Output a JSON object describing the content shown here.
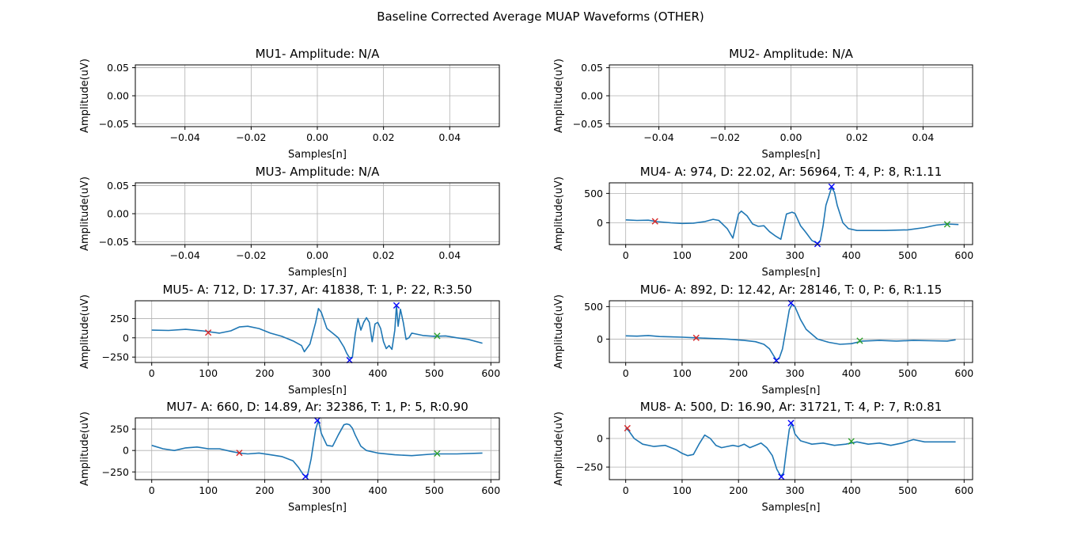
{
  "figure_title": "Baseline Corrected Average MUAP Waveforms (OTHER)",
  "chart_data": [
    {
      "type": "line",
      "title": "MU1- Amplitude: N/A",
      "xlabel": "Samples[n]",
      "ylabel": "Amplitude(uV)",
      "xlim": [
        -0.055,
        0.055
      ],
      "ylim": [
        -0.055,
        0.055
      ],
      "xticks": [
        -0.04,
        -0.02,
        0.0,
        0.02,
        0.04
      ],
      "xtick_labels": [
        "−0.04",
        "−0.02",
        "0.00",
        "0.02",
        "0.04"
      ],
      "yticks": [
        -0.05,
        0.0,
        0.05
      ],
      "ytick_labels": [
        "−0.05",
        "0.00",
        "0.05"
      ],
      "grid": true,
      "series": [],
      "markers": []
    },
    {
      "type": "line",
      "title": "MU2- Amplitude: N/A",
      "xlabel": "Samples[n]",
      "ylabel": "Amplitude(uV)",
      "xlim": [
        -0.055,
        0.055
      ],
      "ylim": [
        -0.055,
        0.055
      ],
      "xticks": [
        -0.04,
        -0.02,
        0.0,
        0.02,
        0.04
      ],
      "xtick_labels": [
        "−0.04",
        "−0.02",
        "0.00",
        "0.02",
        "0.04"
      ],
      "yticks": [
        -0.05,
        0.0,
        0.05
      ],
      "ytick_labels": [
        "−0.05",
        "0.00",
        "0.05"
      ],
      "grid": true,
      "series": [],
      "markers": []
    },
    {
      "type": "line",
      "title": "MU3- Amplitude: N/A",
      "xlabel": "Samples[n]",
      "ylabel": "Amplitude(uV)",
      "xlim": [
        -0.055,
        0.055
      ],
      "ylim": [
        -0.055,
        0.055
      ],
      "xticks": [
        -0.04,
        -0.02,
        0.0,
        0.02,
        0.04
      ],
      "xtick_labels": [
        "−0.04",
        "−0.02",
        "0.00",
        "0.02",
        "0.04"
      ],
      "yticks": [
        -0.05,
        0.0,
        0.05
      ],
      "ytick_labels": [
        "−0.05",
        "0.00",
        "0.05"
      ],
      "grid": true,
      "series": [],
      "markers": []
    },
    {
      "type": "line",
      "title": "MU4- A: 974, D: 22.02, Ar: 56964, T: 4, P: 8, R:1.11",
      "xlabel": "Samples[n]",
      "ylabel": "Amplitude(uV)",
      "xlim": [
        -29,
        615
      ],
      "ylim": [
        -370,
        680
      ],
      "xticks": [
        0,
        100,
        200,
        300,
        400,
        500,
        600
      ],
      "xtick_labels": [
        "0",
        "100",
        "200",
        "300",
        "400",
        "500",
        "600"
      ],
      "yticks": [
        0,
        500
      ],
      "ytick_labels": [
        "0",
        "500"
      ],
      "grid": true,
      "series": [
        {
          "color": "#1f77b4",
          "x": [
            0,
            20,
            40,
            55,
            80,
            100,
            120,
            140,
            155,
            165,
            180,
            190,
            200,
            205,
            215,
            225,
            235,
            245,
            255,
            265,
            275,
            285,
            295,
            300,
            310,
            320,
            330,
            340,
            345,
            350,
            355,
            360,
            365,
            370,
            375,
            385,
            395,
            410,
            430,
            460,
            500,
            530,
            550,
            570,
            590
          ],
          "y": [
            50,
            40,
            45,
            20,
            0,
            -10,
            -5,
            20,
            60,
            40,
            -100,
            -260,
            150,
            200,
            120,
            -20,
            -60,
            -50,
            -150,
            -220,
            -280,
            150,
            180,
            160,
            -50,
            -170,
            -300,
            -350,
            -300,
            -50,
            300,
            450,
            600,
            520,
            300,
            0,
            -100,
            -130,
            -130,
            -130,
            -120,
            -80,
            -40,
            -20,
            -30
          ]
        }
      ],
      "markers": [
        {
          "label": "onset",
          "color": "#d62728",
          "x": 52,
          "y": 25
        },
        {
          "label": "min",
          "color": "#0000ff",
          "x": 340,
          "y": -360
        },
        {
          "label": "max",
          "color": "#0000ff",
          "x": 365,
          "y": 614
        },
        {
          "label": "end",
          "color": "#2ca02c",
          "x": 570,
          "y": -25
        }
      ]
    },
    {
      "type": "line",
      "title": "MU5- A: 712, D: 17.37, Ar: 41838, T: 1, P: 22, R:3.50",
      "xlabel": "Samples[n]",
      "ylabel": "Amplitude(uV)",
      "xlim": [
        -29,
        615
      ],
      "ylim": [
        -320,
        480
      ],
      "xticks": [
        0,
        100,
        200,
        300,
        400,
        500,
        600
      ],
      "xtick_labels": [
        "0",
        "100",
        "200",
        "300",
        "400",
        "500",
        "600"
      ],
      "yticks": [
        -250,
        0,
        250
      ],
      "ytick_labels": [
        "−250",
        "0",
        "250"
      ],
      "grid": true,
      "series": [
        {
          "color": "#1f77b4",
          "x": [
            0,
            30,
            60,
            90,
            100,
            120,
            140,
            155,
            170,
            190,
            210,
            230,
            250,
            265,
            270,
            280,
            290,
            295,
            300,
            310,
            320,
            330,
            340,
            345,
            350,
            355,
            360,
            365,
            370,
            375,
            380,
            385,
            390,
            395,
            400,
            405,
            410,
            415,
            420,
            425,
            430,
            433,
            436,
            440,
            445,
            450,
            455,
            460,
            480,
            500,
            520,
            540,
            560,
            585
          ],
          "y": [
            100,
            95,
            110,
            90,
            80,
            60,
            90,
            140,
            150,
            120,
            60,
            20,
            -40,
            -100,
            -180,
            -80,
            200,
            380,
            330,
            120,
            60,
            0,
            -120,
            -200,
            -260,
            -250,
            50,
            250,
            100,
            200,
            260,
            200,
            -50,
            180,
            200,
            120,
            -50,
            -140,
            -100,
            -150,
            100,
            420,
            150,
            370,
            200,
            -20,
            0,
            60,
            30,
            20,
            25,
            0,
            -20,
            -70
          ]
        }
      ],
      "markers": [
        {
          "label": "onset",
          "color": "#d62728",
          "x": 100,
          "y": 68
        },
        {
          "label": "min",
          "color": "#0000ff",
          "x": 350,
          "y": -290
        },
        {
          "label": "max",
          "color": "#0000ff",
          "x": 433,
          "y": 420
        },
        {
          "label": "end",
          "color": "#2ca02c",
          "x": 505,
          "y": 25
        }
      ]
    },
    {
      "type": "line",
      "title": "MU6- A: 892, D: 12.42, Ar: 28146, T: 0, P: 6, R:1.15",
      "xlabel": "Samples[n]",
      "ylabel": "Amplitude(uV)",
      "xlim": [
        -29,
        615
      ],
      "ylim": [
        -360,
        590
      ],
      "xticks": [
        0,
        100,
        200,
        300,
        400,
        500,
        600
      ],
      "xtick_labels": [
        "0",
        "100",
        "200",
        "300",
        "400",
        "500",
        "600"
      ],
      "yticks": [
        0,
        500
      ],
      "ytick_labels": [
        "0",
        "500"
      ],
      "grid": true,
      "series": [
        {
          "color": "#1f77b4",
          "x": [
            0,
            20,
            40,
            60,
            80,
            100,
            125,
            150,
            180,
            210,
            230,
            245,
            255,
            262,
            267,
            272,
            278,
            285,
            290,
            295,
            300,
            310,
            320,
            340,
            360,
            380,
            400,
            420,
            450,
            480,
            510,
            540,
            570,
            585
          ],
          "y": [
            50,
            45,
            55,
            40,
            35,
            30,
            20,
            10,
            0,
            -20,
            -40,
            -80,
            -150,
            -250,
            -320,
            -300,
            -150,
            200,
            450,
            540,
            500,
            300,
            150,
            0,
            -50,
            -80,
            -70,
            -30,
            -20,
            -30,
            -20,
            -25,
            -30,
            -10
          ]
        }
      ],
      "markers": [
        {
          "label": "onset",
          "color": "#d62728",
          "x": 125,
          "y": 20
        },
        {
          "label": "min",
          "color": "#0000ff",
          "x": 267,
          "y": -330
        },
        {
          "label": "max",
          "color": "#0000ff",
          "x": 293,
          "y": 555
        },
        {
          "label": "end",
          "color": "#2ca02c",
          "x": 415,
          "y": -25
        }
      ]
    },
    {
      "type": "line",
      "title": "MU7- A: 660, D: 14.89, Ar: 32386, T: 1, P: 5, R:0.90",
      "xlabel": "Samples[n]",
      "ylabel": "Amplitude(uV)",
      "xlim": [
        -29,
        615
      ],
      "ylim": [
        -340,
        380
      ],
      "xticks": [
        0,
        100,
        200,
        300,
        400,
        500,
        600
      ],
      "xtick_labels": [
        "0",
        "100",
        "200",
        "300",
        "400",
        "500",
        "600"
      ],
      "yticks": [
        -250,
        0,
        250
      ],
      "ytick_labels": [
        "−250",
        "0",
        "250"
      ],
      "grid": true,
      "series": [
        {
          "color": "#1f77b4",
          "x": [
            0,
            20,
            40,
            60,
            80,
            100,
            120,
            140,
            155,
            170,
            190,
            210,
            230,
            250,
            260,
            268,
            275,
            282,
            290,
            295,
            300,
            310,
            320,
            330,
            340,
            345,
            350,
            355,
            360,
            370,
            380,
            400,
            430,
            460,
            500,
            540,
            585
          ],
          "y": [
            60,
            20,
            0,
            30,
            40,
            20,
            20,
            -10,
            -30,
            -40,
            -30,
            -50,
            -70,
            -120,
            -200,
            -280,
            -310,
            -100,
            250,
            350,
            200,
            60,
            50,
            180,
            300,
            310,
            300,
            260,
            180,
            50,
            0,
            -30,
            -50,
            -60,
            -40,
            -40,
            -30
          ]
        }
      ],
      "markers": [
        {
          "label": "onset",
          "color": "#d62728",
          "x": 155,
          "y": -28
        },
        {
          "label": "min",
          "color": "#0000ff",
          "x": 272,
          "y": -305
        },
        {
          "label": "max",
          "color": "#0000ff",
          "x": 293,
          "y": 350
        },
        {
          "label": "end",
          "color": "#2ca02c",
          "x": 505,
          "y": -35
        }
      ]
    },
    {
      "type": "line",
      "title": "MU8- A: 500, D: 16.90, Ar: 31721, T: 4, P: 7, R:0.81",
      "xlabel": "Samples[n]",
      "ylabel": "Amplitude(uV)",
      "xlim": [
        -29,
        615
      ],
      "ylim": [
        -360,
        180
      ],
      "xticks": [
        0,
        100,
        200,
        300,
        400,
        500,
        600
      ],
      "xtick_labels": [
        "0",
        "100",
        "200",
        "300",
        "400",
        "500",
        "600"
      ],
      "yticks": [
        -250,
        0
      ],
      "ytick_labels": [
        "−250",
        "0"
      ],
      "grid": true,
      "series": [
        {
          "color": "#1f77b4",
          "x": [
            0,
            5,
            15,
            30,
            50,
            70,
            90,
            100,
            110,
            120,
            130,
            140,
            150,
            160,
            170,
            180,
            190,
            200,
            210,
            220,
            230,
            240,
            250,
            260,
            268,
            275,
            280,
            285,
            290,
            295,
            300,
            310,
            330,
            350,
            370,
            390,
            410,
            430,
            450,
            470,
            490,
            510,
            530,
            560,
            585
          ],
          "y": [
            90,
            70,
            0,
            -50,
            -70,
            -60,
            -100,
            -130,
            -150,
            -140,
            -50,
            30,
            0,
            -60,
            -80,
            -70,
            -60,
            -70,
            -50,
            -80,
            -60,
            -40,
            -80,
            -150,
            -270,
            -330,
            -300,
            -100,
            80,
            130,
            40,
            -20,
            -50,
            -40,
            -60,
            -50,
            -30,
            -50,
            -40,
            -60,
            -40,
            -10,
            -30,
            -30,
            -30
          ]
        }
      ],
      "markers": [
        {
          "label": "onset",
          "color": "#d62728",
          "x": 3,
          "y": 90
        },
        {
          "label": "min",
          "color": "#0000ff",
          "x": 276,
          "y": -335
        },
        {
          "label": "max",
          "color": "#0000ff",
          "x": 293,
          "y": 135
        },
        {
          "label": "end",
          "color": "#2ca02c",
          "x": 400,
          "y": -25
        }
      ]
    }
  ]
}
